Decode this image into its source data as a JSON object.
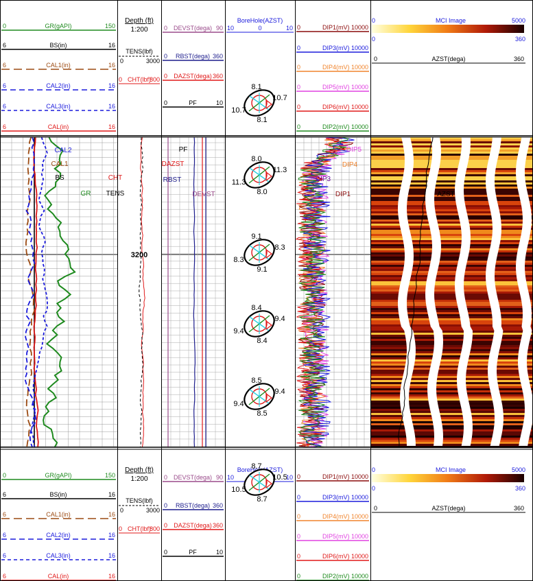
{
  "colors": {
    "green": "#1e8a1e",
    "black": "#000000",
    "brown": "#9b4a12",
    "blue": "#1a1adc",
    "red": "#e01818",
    "purple": "#9a4a8a",
    "navy": "#1c1c8c",
    "orange": "#f0842c",
    "magenta": "#e040e0",
    "darkred": "#8a0a0a"
  },
  "header": {
    "track1": [
      {
        "min": "0",
        "name": "GR(gAPI)",
        "max": "150",
        "color": "#1e8a1e",
        "dash": ""
      },
      {
        "min": "6",
        "name": "BS(in)",
        "max": "16",
        "color": "#000000",
        "dash": ""
      },
      {
        "min": "6",
        "name": "CAL1(in)",
        "max": "16",
        "color": "#9b4a12",
        "dash": "12,6"
      },
      {
        "min": "6",
        "name": "CAL2(in)",
        "max": "16",
        "color": "#1a1adc",
        "dash": "8,5"
      },
      {
        "min": "6",
        "name": "CAL3(in)",
        "max": "16",
        "color": "#1a1adc",
        "dash": "5,4"
      },
      {
        "min": "6",
        "name": "CAL(in)",
        "max": "16",
        "color": "#e01818",
        "dash": ""
      }
    ],
    "depth": {
      "title": "Depth (ft)",
      "scale": "1:200",
      "tens_name": "TENS(lbf)",
      "tens_min": "0",
      "tens_max": "3000",
      "cht_min": "0",
      "cht_name": "CHT(lbf)",
      "cht_max": "800"
    },
    "track3": [
      {
        "min": "0",
        "name": "DEVST(dega)",
        "max": "90",
        "color": "#9a4a8a"
      },
      {
        "min": "0",
        "name": "RBST(dega)",
        "max": "360",
        "color": "#1c1c8c"
      },
      {
        "min": "0",
        "name": "DAZST(dega)",
        "max": "360",
        "color": "#e01818"
      },
      {
        "min": "0",
        "name": "PF",
        "max": "10",
        "color": "#000000"
      }
    ],
    "borehole": {
      "title": "BoreHole(AZST)",
      "min": "10",
      "mid": "0",
      "max": "10",
      "top": "8.1",
      "right": "10.7",
      "left": "10.7",
      "bottom": "8.1"
    },
    "dips": [
      {
        "min": "0",
        "name": "DIP1(mV)",
        "max": "10000",
        "color": "#8a0a0a"
      },
      {
        "min": "0",
        "name": "DIP3(mV)",
        "max": "10000",
        "color": "#1a1adc"
      },
      {
        "min": "0",
        "name": "DIP4(mV)",
        "max": "10000",
        "color": "#f0842c"
      },
      {
        "min": "0",
        "name": "DIP5(mV)",
        "max": "10000",
        "color": "#e040e0"
      },
      {
        "min": "0",
        "name": "DIP6(mV)",
        "max": "10000",
        "color": "#e01818"
      },
      {
        "min": "0",
        "name": "DIP2(mV)",
        "max": "10000",
        "color": "#1e8a1e"
      }
    ],
    "image": {
      "title": "MCI Image",
      "min": "0",
      "max": "5000",
      "sub_min": "0",
      "sub_max": "360",
      "azst_min": "0",
      "azst_name": "AZST(dega)",
      "azst_max": "360"
    }
  },
  "footer": {
    "borehole": {
      "title": "BoreHole(AZST)",
      "min": "10",
      "mid": "0",
      "max": "10",
      "top": "8.7",
      "right": "10.5",
      "left": "10.5",
      "bottom": "8.7"
    }
  },
  "curve_labels": {
    "track1": [
      "CAL2",
      "CAL1",
      "BS",
      "GR"
    ],
    "track2": [
      "CHT",
      "TENS"
    ],
    "track3": [
      "PF",
      "DAZST",
      "RBST",
      "DEVST"
    ],
    "dips": [
      "DIP5",
      "DIP4",
      "DIP3",
      "DIP1"
    ],
    "image": [
      "AZST"
    ]
  },
  "depth_marker": "3200",
  "borehole_samples": [
    {
      "top": "8.0",
      "right": "11.3",
      "left": "11.3",
      "bottom": "8.0"
    },
    {
      "top": "9.1",
      "right": "8.3",
      "left": "8.3",
      "bottom": "9.1"
    },
    {
      "top": "8.4",
      "right": "9.4",
      "left": "9.4",
      "bottom": "8.4"
    },
    {
      "top": "8.5",
      "right": "9.4",
      "left": "9.4",
      "bottom": "8.5"
    }
  ]
}
